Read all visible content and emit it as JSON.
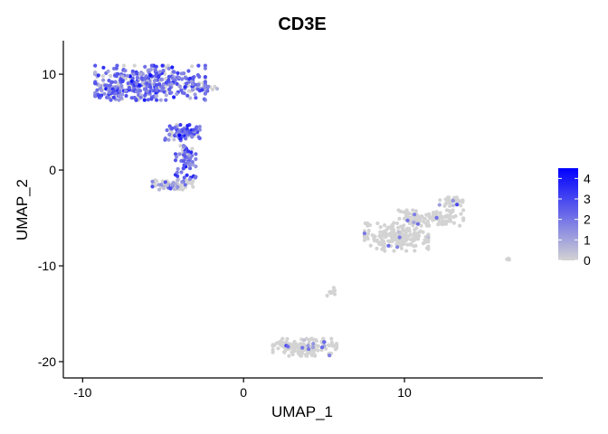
{
  "chart_data": {
    "type": "scatter",
    "title": "CD3E",
    "xlabel": "UMAP_1",
    "ylabel": "UMAP_2",
    "xlim": [
      -11.2,
      18.6
    ],
    "ylim": [
      -21.7,
      13.5
    ],
    "xticks": [
      -10,
      0,
      10
    ],
    "yticks": [
      10,
      0,
      -10,
      -20
    ],
    "grid": false,
    "legend": {
      "placement": "right",
      "ticks": [
        4,
        3,
        2,
        1,
        0
      ],
      "range": [
        0,
        4.5
      ],
      "color_low": "#d3d3d3",
      "color_high": "#0000ff"
    },
    "clusters": [
      {
        "id": "c1-cap",
        "center": [
          -5.8,
          9.1
        ],
        "spread": [
          1.9,
          1.0
        ],
        "n": 380,
        "expr_mean": 2.2,
        "expr_fraction": 0.82
      },
      {
        "id": "c1-cap-left",
        "center": [
          -8.4,
          8.2
        ],
        "spread": [
          0.4,
          0.35
        ],
        "n": 40,
        "expr_mean": 2.2,
        "expr_fraction": 0.8
      },
      {
        "id": "c1-cap-right",
        "center": [
          -2.5,
          8.6
        ],
        "spread": [
          0.5,
          0.2
        ],
        "n": 30,
        "expr_mean": 1.6,
        "expr_fraction": 0.55
      },
      {
        "id": "c1-mid",
        "center": [
          -3.8,
          3.9
        ],
        "spread": [
          0.6,
          0.45
        ],
        "n": 90,
        "expr_mean": 2.3,
        "expr_fraction": 0.78
      },
      {
        "id": "c1-stem",
        "center": [
          -3.6,
          1.0
        ],
        "spread": [
          0.35,
          1.0
        ],
        "n": 60,
        "expr_mean": 2.3,
        "expr_fraction": 0.8
      },
      {
        "id": "c1-base",
        "center": [
          -4.4,
          -1.5
        ],
        "spread": [
          0.7,
          0.3
        ],
        "n": 70,
        "expr_mean": 1.4,
        "expr_fraction": 0.45
      },
      {
        "id": "c2-left",
        "center": [
          9.5,
          -7.0
        ],
        "spread": [
          1.1,
          0.8
        ],
        "n": 200,
        "expr_mean": 1.5,
        "expr_fraction": 0.05
      },
      {
        "id": "c2-band",
        "center": [
          11.5,
          -5.0
        ],
        "spread": [
          1.2,
          0.45
        ],
        "n": 120,
        "expr_mean": 1.5,
        "expr_fraction": 0.05
      },
      {
        "id": "c2-right",
        "center": [
          12.9,
          -3.3
        ],
        "spread": [
          0.4,
          0.25
        ],
        "n": 40,
        "expr_mean": 1.5,
        "expr_fraction": 0.05
      },
      {
        "id": "c3",
        "center": [
          3.8,
          -18.5
        ],
        "spread": [
          1.1,
          0.5
        ],
        "n": 160,
        "expr_mean": 1.5,
        "expr_fraction": 0.06
      },
      {
        "id": "c4",
        "center": [
          5.4,
          -12.8
        ],
        "spread": [
          0.15,
          0.3
        ],
        "n": 10,
        "expr_mean": 0,
        "expr_fraction": 0.0
      },
      {
        "id": "c5",
        "center": [
          16.5,
          -9.4
        ],
        "spread": [
          0.1,
          0.1
        ],
        "n": 4,
        "expr_mean": 0,
        "expr_fraction": 0.0
      }
    ]
  }
}
